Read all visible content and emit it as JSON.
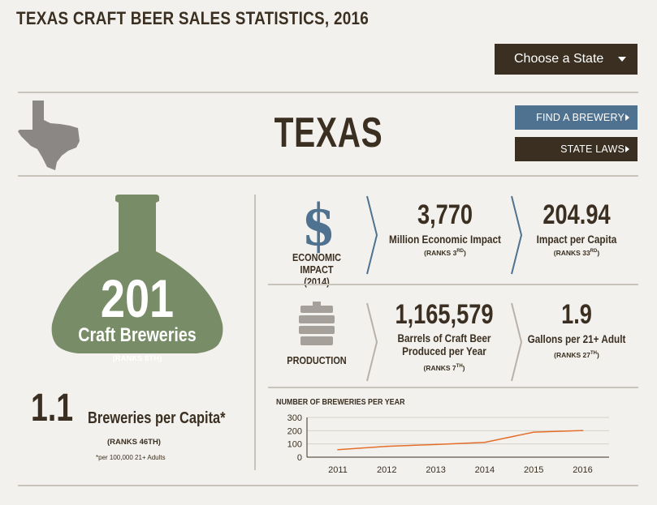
{
  "header": {
    "title": "TEXAS CRAFT BEER SALES STATISTICS, 2016"
  },
  "state_select": {
    "label": "Choose a State"
  },
  "state": {
    "name": "TEXAS"
  },
  "buttons": {
    "find_brewery": "FIND A BREWERY",
    "state_laws": "STATE LAWS"
  },
  "breweries": {
    "count": "201",
    "label": "Craft Breweries",
    "rank": "(RANKS 8TH)"
  },
  "per_capita": {
    "value": "1.1",
    "label": "Breweries per Capita*",
    "rank": "(RANKS 46TH)",
    "note": "*per 100,000 21+ Adults"
  },
  "economic": {
    "label_line1": "ECONOMIC IMPACT",
    "label_line2": "(2014)",
    "value": "3,770",
    "value_label": "Million Economic Impact",
    "value_rank_prefix": "(RANKS 3",
    "value_rank_sup": "RD",
    "value_rank_suffix": ")",
    "per_capita": "204.94",
    "per_capita_label": "Impact per Capita",
    "per_capita_rank_prefix": "(RANKS 33",
    "per_capita_rank_sup": "RD",
    "per_capita_rank_suffix": ")"
  },
  "production": {
    "label": "PRODUCTION",
    "value": "1,165,579",
    "value_label_line1": "Barrels of Craft Beer",
    "value_label_line2": "Produced per Year",
    "value_rank_prefix": "(RANKS 7",
    "value_rank_sup": "TH",
    "value_rank_suffix": ")",
    "gallons": "1.9",
    "gallons_label": "Gallons per 21+ Adult",
    "gallons_rank_prefix": "(RANKS 27",
    "gallons_rank_sup": "TH",
    "gallons_rank_suffix": ")"
  },
  "icons": {
    "dollar": "$"
  },
  "colors": {
    "dark_brown": "#3a2f20",
    "blue": "#4f7290",
    "green": "#788c67",
    "line": "#e46f2a"
  },
  "chart_data": {
    "type": "line",
    "title": "NUMBER OF BREWERIES PER YEAR",
    "categories": [
      "2011",
      "2012",
      "2013",
      "2014",
      "2015",
      "2016"
    ],
    "series": [
      {
        "values": [
          57,
          82,
          96,
          112,
          189,
          201
        ]
      }
    ],
    "ylim": [
      0,
      300
    ],
    "yticks": [
      "300",
      "200",
      "100",
      "0"
    ],
    "grid": true
  }
}
